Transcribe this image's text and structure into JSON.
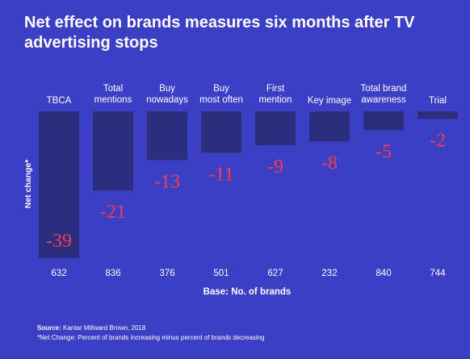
{
  "title": "Net effect on brands measures six months after TV advertising stops",
  "source": {
    "label": "Source:",
    "text": "Kantar Millward Brown, 2018",
    "note": "*Net Change: Percent of brands increasing minus percent of brands decreasing"
  },
  "colors": {
    "background": "#3b3fc4",
    "bar": "#2b2e7c",
    "value_label": "#ff3b4f"
  },
  "chart_data": {
    "type": "bar",
    "categories": [
      "TBCA",
      "Total mentions",
      "Buy nowadays",
      "Buy most often",
      "First mention",
      "Key image",
      "Total brand awareness",
      "Trial"
    ],
    "category_label_lines": [
      [
        "TBCA"
      ],
      [
        "Total",
        "mentions"
      ],
      [
        "Buy",
        "nowadays"
      ],
      [
        "Buy",
        "most often"
      ],
      [
        "First",
        "mention"
      ],
      [
        "Key image"
      ],
      [
        "Total brand",
        "awareness"
      ],
      [
        "Trial"
      ]
    ],
    "values": [
      -39,
      -21,
      -13,
      -11,
      -9,
      -8,
      -5,
      -2
    ],
    "value_labels": [
      "-39",
      "-21",
      "-13",
      "-11",
      "-9",
      "-8",
      "-5",
      "-2"
    ],
    "base_counts": [
      "632",
      "836",
      "376",
      "501",
      "627",
      "232",
      "840",
      "744"
    ],
    "ylabel": "Net change*",
    "xlabel": "Base: No. of brands",
    "ylim": [
      -39,
      0
    ],
    "grid": false,
    "legend": "none"
  }
}
